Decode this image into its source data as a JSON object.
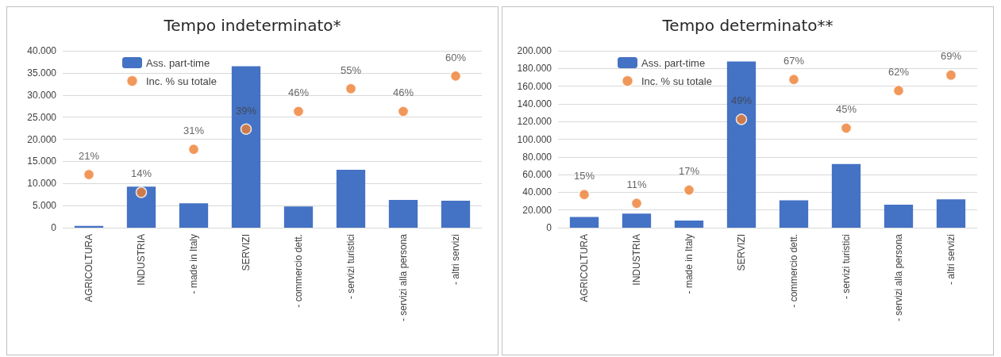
{
  "chart_data": [
    {
      "type": "bar",
      "title": "Tempo indeterminato*",
      "categories": [
        "AGRICOLTURA",
        "INDUSTRIA",
        "- made in Italy",
        "SERVIZI",
        "- commercio dett.",
        "- servizi turistici",
        "- servizi alla persona",
        "- altri servizi"
      ],
      "series": [
        {
          "name": "Ass. part-time",
          "color": "#4472c4",
          "values": [
            400,
            9300,
            5500,
            36500,
            4800,
            13100,
            6300,
            6100
          ]
        },
        {
          "name": "Inc. % su totale",
          "type": "scatter",
          "axis": "y2",
          "color": "#ed7d31",
          "values": [
            21,
            14,
            31,
            39,
            46,
            55,
            46,
            60
          ],
          "value_labels": [
            "21%",
            "14%",
            "31%",
            "39%",
            "46%",
            "55%",
            "46%",
            "60%"
          ]
        }
      ],
      "ylim": [
        0,
        40000
      ],
      "yticks": [
        {
          "value": 0,
          "label": "0"
        },
        {
          "value": 5000,
          "label": "5.000"
        },
        {
          "value": 10000,
          "label": "10.000"
        },
        {
          "value": 15000,
          "label": "15.000"
        },
        {
          "value": 20000,
          "label": "20.000"
        },
        {
          "value": 25000,
          "label": "25.000"
        },
        {
          "value": 30000,
          "label": "30.000"
        },
        {
          "value": 35000,
          "label": "35.000"
        },
        {
          "value": 40000,
          "label": "40.000"
        }
      ],
      "y2lim": [
        0,
        70
      ],
      "grid": "y",
      "legend": "top left",
      "marker": "circle"
    },
    {
      "type": "bar",
      "title": "Tempo determinato**",
      "categories": [
        "AGRICOLTURA",
        "INDUSTRIA",
        "- made in Italy",
        "SERVIZI",
        "- commercio dett.",
        "- servizi turistici",
        "- servizi alla persona",
        "- altri servizi"
      ],
      "series": [
        {
          "name": "Ass. part-time",
          "color": "#4472c4",
          "values": [
            12000,
            16000,
            8000,
            188000,
            31000,
            72000,
            26000,
            32000
          ]
        },
        {
          "name": "Inc. % su totale",
          "type": "scatter",
          "axis": "y2",
          "color": "#ed7d31",
          "values": [
            15,
            11,
            17,
            49,
            67,
            45,
            62,
            69
          ],
          "value_labels": [
            "15%",
            "11%",
            "17%",
            "49%",
            "67%",
            "45%",
            "62%",
            "69%"
          ]
        }
      ],
      "ylim": [
        0,
        200000
      ],
      "yticks": [
        {
          "value": 0,
          "label": "0"
        },
        {
          "value": 20000,
          "label": "20.000"
        },
        {
          "value": 40000,
          "label": "40.000"
        },
        {
          "value": 60000,
          "label": "60.000"
        },
        {
          "value": 80000,
          "label": "80.000"
        },
        {
          "value": 100000,
          "label": "100.000"
        },
        {
          "value": 120000,
          "label": "120.000"
        },
        {
          "value": 140000,
          "label": "140.000"
        },
        {
          "value": 160000,
          "label": "160.000"
        },
        {
          "value": 180000,
          "label": "180.000"
        },
        {
          "value": 200000,
          "label": "200.000"
        }
      ],
      "y2lim": [
        0,
        80
      ],
      "grid": "y",
      "legend": "top left",
      "marker": "circle"
    }
  ]
}
